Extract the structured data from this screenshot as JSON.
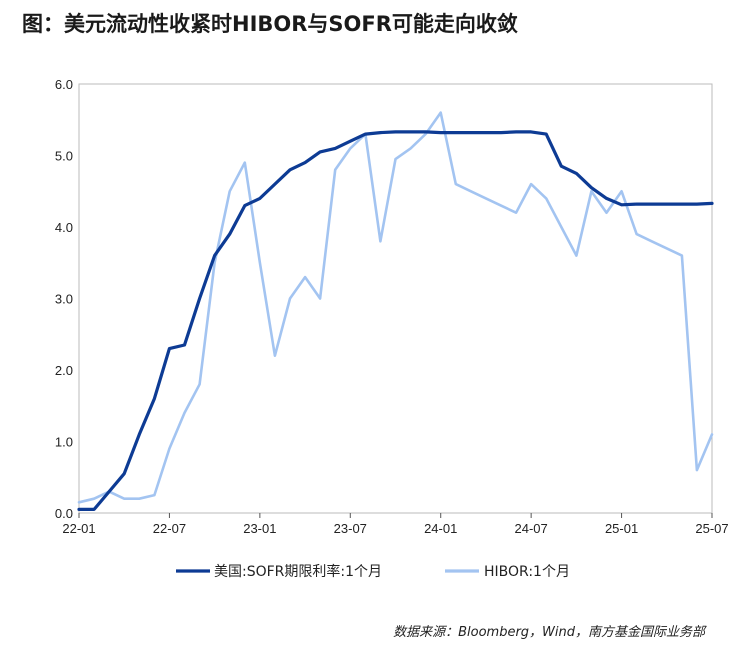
{
  "chart_data": {
    "type": "line",
    "title": "图：美元流动性收紧时HIBOR与SOFR可能走向收敛",
    "source": "数据来源：Bloomberg，Wind，南方基金国际业务部",
    "xlim": [
      "2022-01",
      "2025-07"
    ],
    "ylim": [
      0,
      6
    ],
    "x_ticks": [
      "22-01",
      "22-07",
      "23-01",
      "23-07",
      "24-01",
      "24-07",
      "25-01",
      "25-07"
    ],
    "y_ticks": [
      "0.0",
      "1.0",
      "2.0",
      "3.0",
      "4.0",
      "5.0",
      "6.0"
    ],
    "grid": false,
    "legend_position": "bottom",
    "colors": {
      "sofr": "#0d3b94",
      "hibor": "#a3c4f1"
    },
    "series": [
      {
        "name": "美国:SOFR期限利率:1个月",
        "x": [
          "2022-01",
          "2022-02",
          "2022-03",
          "2022-04",
          "2022-05",
          "2022-06",
          "2022-07",
          "2022-08",
          "2022-09",
          "2022-10",
          "2022-11",
          "2022-12",
          "2023-01",
          "2023-02",
          "2023-03",
          "2023-04",
          "2023-05",
          "2023-06",
          "2023-07",
          "2023-08",
          "2023-09",
          "2023-10",
          "2023-11",
          "2023-12",
          "2024-01",
          "2024-02",
          "2024-03",
          "2024-04",
          "2024-05",
          "2024-06",
          "2024-07",
          "2024-08",
          "2024-09",
          "2024-10",
          "2024-11",
          "2024-12",
          "2025-01",
          "2025-02",
          "2025-03",
          "2025-04",
          "2025-05",
          "2025-06",
          "2025-07"
        ],
        "values": [
          0.05,
          0.05,
          0.3,
          0.55,
          1.1,
          1.6,
          2.3,
          2.35,
          3.0,
          3.6,
          3.9,
          4.3,
          4.4,
          4.6,
          4.8,
          4.9,
          5.05,
          5.1,
          5.2,
          5.3,
          5.32,
          5.33,
          5.33,
          5.33,
          5.32,
          5.32,
          5.32,
          5.32,
          5.32,
          5.33,
          5.33,
          5.3,
          4.85,
          4.75,
          4.55,
          4.4,
          4.31,
          4.32,
          4.32,
          4.32,
          4.32,
          4.32,
          4.33
        ]
      },
      {
        "name": "HIBOR:1个月",
        "x": [
          "2022-01",
          "2022-02",
          "2022-03",
          "2022-04",
          "2022-05",
          "2022-06",
          "2022-07",
          "2022-08",
          "2022-09",
          "2022-10",
          "2022-11",
          "2022-12",
          "2023-01",
          "2023-02",
          "2023-03",
          "2023-04",
          "2023-05",
          "2023-06",
          "2023-07",
          "2023-08",
          "2023-09",
          "2023-10",
          "2023-11",
          "2023-12",
          "2024-01",
          "2024-02",
          "2024-03",
          "2024-04",
          "2024-05",
          "2024-06",
          "2024-07",
          "2024-08",
          "2024-09",
          "2024-10",
          "2024-11",
          "2024-12",
          "2025-01",
          "2025-02",
          "2025-03",
          "2025-04",
          "2025-05",
          "2025-06",
          "2025-07"
        ],
        "values": [
          0.15,
          0.2,
          0.3,
          0.2,
          0.2,
          0.25,
          0.9,
          1.4,
          1.8,
          3.5,
          4.5,
          4.9,
          3.5,
          2.2,
          3.0,
          3.3,
          3.0,
          4.8,
          5.1,
          5.3,
          3.8,
          4.95,
          5.1,
          5.3,
          5.6,
          4.6,
          4.5,
          4.4,
          4.3,
          4.2,
          4.6,
          4.4,
          4.0,
          3.6,
          4.5,
          4.2,
          4.5,
          3.9,
          3.8,
          3.7,
          3.6,
          0.6,
          1.1
        ]
      }
    ]
  }
}
